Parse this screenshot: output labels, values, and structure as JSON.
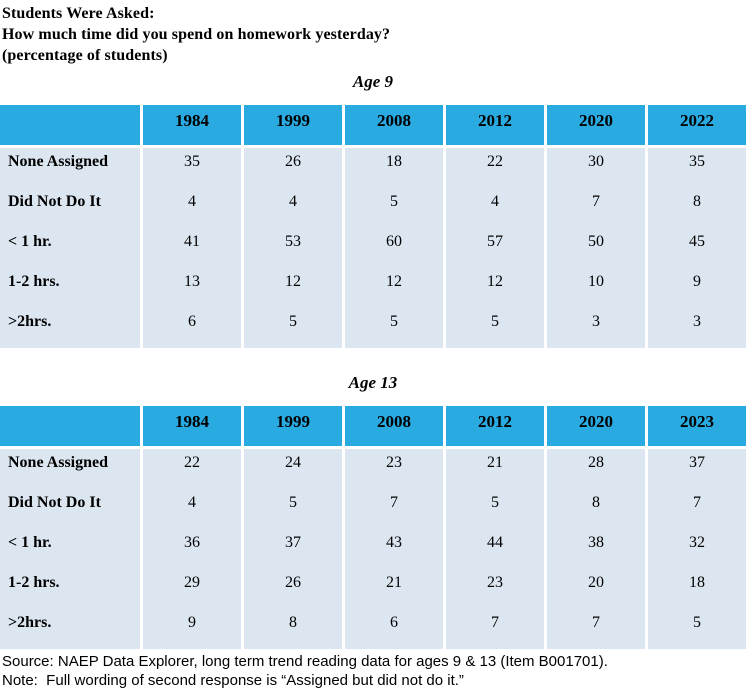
{
  "header": {
    "line1": "Students Were Asked:",
    "line2": "How much time did you spend on homework yesterday?",
    "line3": "(percentage of students)"
  },
  "tables": [
    {
      "title": "Age 9",
      "columns": [
        "1984",
        "1999",
        "2008",
        "2012",
        "2020",
        "2022"
      ],
      "rows": [
        {
          "label": "None Assigned",
          "values": [
            35,
            26,
            18,
            22,
            30,
            35
          ]
        },
        {
          "label": "Did Not Do It",
          "values": [
            4,
            4,
            5,
            4,
            7,
            8
          ]
        },
        {
          "label": "< 1 hr.",
          "values": [
            41,
            53,
            60,
            57,
            50,
            45
          ]
        },
        {
          "label": "1-2 hrs.",
          "values": [
            13,
            12,
            12,
            12,
            10,
            9
          ]
        },
        {
          "label": ">2hrs.",
          "values": [
            6,
            5,
            5,
            5,
            3,
            3
          ]
        }
      ]
    },
    {
      "title": "Age 13",
      "columns": [
        "1984",
        "1999",
        "2008",
        "2012",
        "2020",
        "2023"
      ],
      "rows": [
        {
          "label": "None Assigned",
          "values": [
            22,
            24,
            23,
            21,
            28,
            37
          ]
        },
        {
          "label": "Did Not Do It",
          "values": [
            4,
            5,
            7,
            5,
            8,
            7
          ]
        },
        {
          "label": "< 1 hr.",
          "values": [
            36,
            37,
            43,
            44,
            38,
            32
          ]
        },
        {
          "label": "1-2 hrs.",
          "values": [
            29,
            26,
            21,
            23,
            20,
            18
          ]
        },
        {
          "label": ">2hrs.",
          "values": [
            9,
            8,
            6,
            7,
            7,
            5
          ]
        }
      ]
    }
  ],
  "footer": {
    "source": "Source: NAEP Data Explorer, long term trend reading data for ages 9 & 13 (Item B001701).",
    "note": "Note:  Full wording of second response is “Assigned but did not do it.”"
  },
  "colors": {
    "header_blue": "#29abe2",
    "row_blue": "#dce6f1",
    "text": "#000000"
  }
}
